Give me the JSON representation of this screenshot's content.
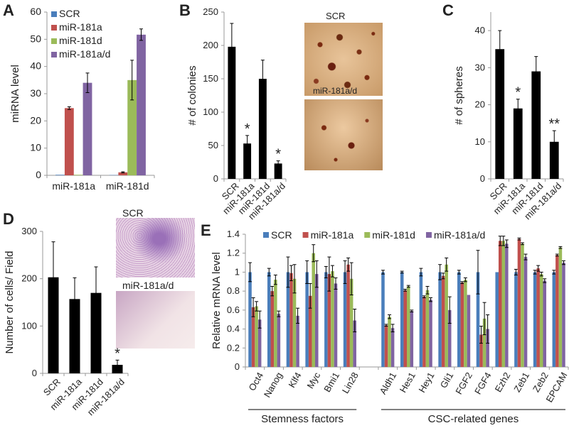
{
  "panels": {
    "A": "A",
    "B": "B",
    "C": "C",
    "D": "D",
    "E": "E"
  },
  "photos": {
    "b_top": "SCR",
    "b_bottom": "miR-181a/d",
    "d_top": "SCR",
    "d_bottom": "miR-181a/d"
  },
  "colors": {
    "SCR": "#4a7ebb",
    "miR-181a": "#c0504d",
    "miR-181d": "#9bbb59",
    "miR-181a/d": "#8064a2",
    "black": "#000000"
  },
  "chart_data": [
    {
      "id": "A",
      "type": "bar",
      "ylabel": "miRNA level",
      "xlabel": "",
      "ylim": [
        0,
        60
      ],
      "yticks": [
        0,
        10,
        20,
        30,
        40,
        50,
        60
      ],
      "categories": [
        "miR-181a",
        "miR-181d"
      ],
      "legend": "top-left",
      "series": [
        {
          "name": "SCR",
          "values": [
            0.2,
            0.1
          ],
          "errors": [
            0,
            0
          ]
        },
        {
          "name": "miR-181a",
          "values": [
            24.7,
            1.1
          ],
          "errors": [
            0.5,
            0.2
          ]
        },
        {
          "name": "miR-181d",
          "values": [
            0.2,
            35
          ],
          "errors": [
            0,
            7.3
          ]
        },
        {
          "name": "miR-181a/d",
          "values": [
            34,
            51.7
          ],
          "errors": [
            3.6,
            2.1
          ]
        }
      ]
    },
    {
      "id": "B",
      "type": "bar",
      "ylabel": "# of colonies",
      "ylim": [
        0,
        250
      ],
      "yticks": [
        0,
        50,
        100,
        150,
        200,
        250
      ],
      "categories": [
        "SCR",
        "miR-181a",
        "miR-181d",
        "miR-181a/d"
      ],
      "series": [
        {
          "name": "colonies",
          "values": [
            198,
            53,
            150,
            23
          ],
          "errors": [
            35,
            12,
            28,
            4
          ]
        }
      ],
      "annotations": [
        "",
        "*",
        "",
        "*"
      ]
    },
    {
      "id": "C",
      "type": "bar",
      "ylabel": "# of spheres",
      "ylim": [
        0,
        45
      ],
      "yticks": [
        0,
        10,
        20,
        30,
        40
      ],
      "categories": [
        "SCR",
        "miR-181a",
        "miR-181d",
        "miR-181a/d"
      ],
      "series": [
        {
          "name": "spheres",
          "values": [
            35,
            19,
            29,
            10
          ],
          "errors": [
            5,
            2.5,
            4,
            3
          ]
        }
      ],
      "annotations": [
        "",
        "*",
        "",
        "**"
      ]
    },
    {
      "id": "D",
      "type": "bar",
      "ylabel": "Number of cells/ Field",
      "ylim": [
        0,
        300
      ],
      "yticks": [
        0,
        100,
        200,
        300
      ],
      "categories": [
        "SCR",
        "miR-181a",
        "miR-181d",
        "miR-181a/d"
      ],
      "series": [
        {
          "name": "cells",
          "values": [
            203,
            157,
            170,
            18
          ],
          "errors": [
            75,
            45,
            55,
            10
          ]
        }
      ],
      "annotations": [
        "",
        "",
        "",
        "*"
      ]
    },
    {
      "id": "E",
      "type": "bar",
      "ylabel": "Relative mRNA level",
      "ylim": [
        0,
        1.4
      ],
      "yticks": [
        0,
        0.2,
        0.4,
        0.6,
        0.8,
        1,
        1.2,
        1.4
      ],
      "legend": "top",
      "categories": [
        "Oct4",
        "Nanog",
        "Klf4",
        "Myc",
        "Bmi1",
        "Lin28",
        "",
        "Aldh1",
        "Hes1",
        "Hey1",
        "Gli1",
        "FGF2",
        "FGF4",
        "Ezh2",
        "Zeb1",
        "Zeb2",
        "EPCAM"
      ],
      "groups": [
        {
          "label": "Stemness factors",
          "from": 0,
          "to": 5
        },
        {
          "label": "CSC-related genes",
          "from": 7,
          "to": 16
        }
      ],
      "series": [
        {
          "name": "SCR",
          "values": [
            1,
            1,
            1,
            1,
            1,
            1,
            null,
            1,
            1,
            1,
            1,
            1,
            1,
            1,
            1,
            1,
            1
          ],
          "errors": [
            0.1,
            0.04,
            0.16,
            0.12,
            0.06,
            0.12,
            null,
            0.02,
            0.01,
            0.04,
            0.08,
            0.02,
            0.23,
            0,
            0.03,
            0.02,
            0.02
          ]
        },
        {
          "name": "miR-181a",
          "values": [
            0.63,
            0.8,
            0.99,
            0.75,
            0.98,
            1.08,
            null,
            0.44,
            0.81,
            0.74,
            0.96,
            0.89,
            0.34,
            1.33,
            1.35,
            1.04,
            1.18
          ],
          "errors": [
            0.1,
            0.05,
            0.08,
            0.13,
            0.18,
            0.07,
            null,
            0.01,
            0.01,
            0.01,
            0.03,
            0.01,
            0.09,
            0.05,
            0.01,
            0.03,
            0.01
          ]
        },
        {
          "name": "miR-181d",
          "values": [
            0.64,
            0.92,
            0.93,
            1.2,
            1.01,
            0.93,
            null,
            0.53,
            0.85,
            0.81,
            1.08,
            0.92,
            0.51,
            1.33,
            1.3,
            0.98,
            1.26
          ],
          "errors": [
            0.05,
            0.05,
            0.15,
            0.09,
            0.06,
            0.17,
            null,
            0.02,
            0.01,
            0.04,
            0.07,
            0.02,
            0.17,
            0.05,
            0.01,
            0.02,
            0.01
          ]
        },
        {
          "name": "miR-181a/d",
          "values": [
            0.5,
            0.56,
            0.54,
            0.98,
            0.88,
            0.49,
            null,
            0.41,
            0.59,
            0.71,
            0.6,
            0.76,
            0.4,
            1.3,
            1.16,
            0.91,
            1.1
          ],
          "errors": [
            0.09,
            0.03,
            0.08,
            0.14,
            0.06,
            0.12,
            null,
            0.04,
            0.01,
            0.02,
            0.14,
            0,
            0.15,
            0.04,
            0.03,
            0.02,
            0.02
          ]
        }
      ]
    }
  ]
}
